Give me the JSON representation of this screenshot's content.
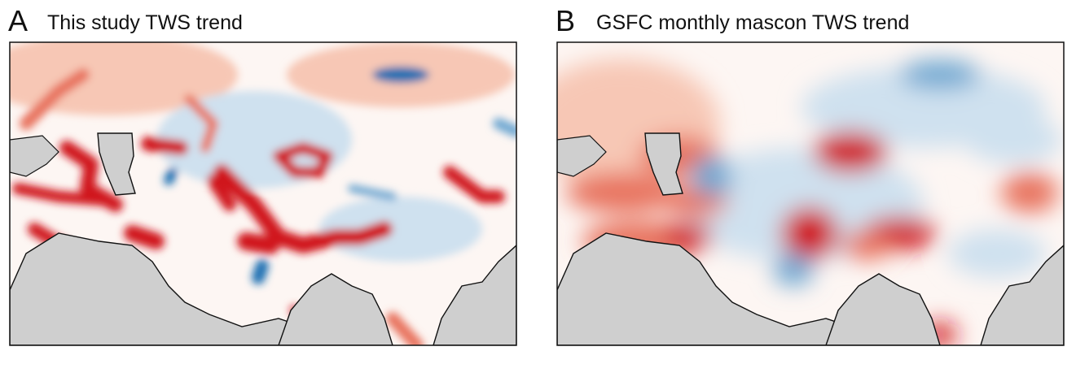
{
  "panels": [
    {
      "letter": "A",
      "title": "This study TWS trend"
    },
    {
      "letter": "B",
      "title": "GSFC monthly mascon TWS trend"
    }
  ]
}
